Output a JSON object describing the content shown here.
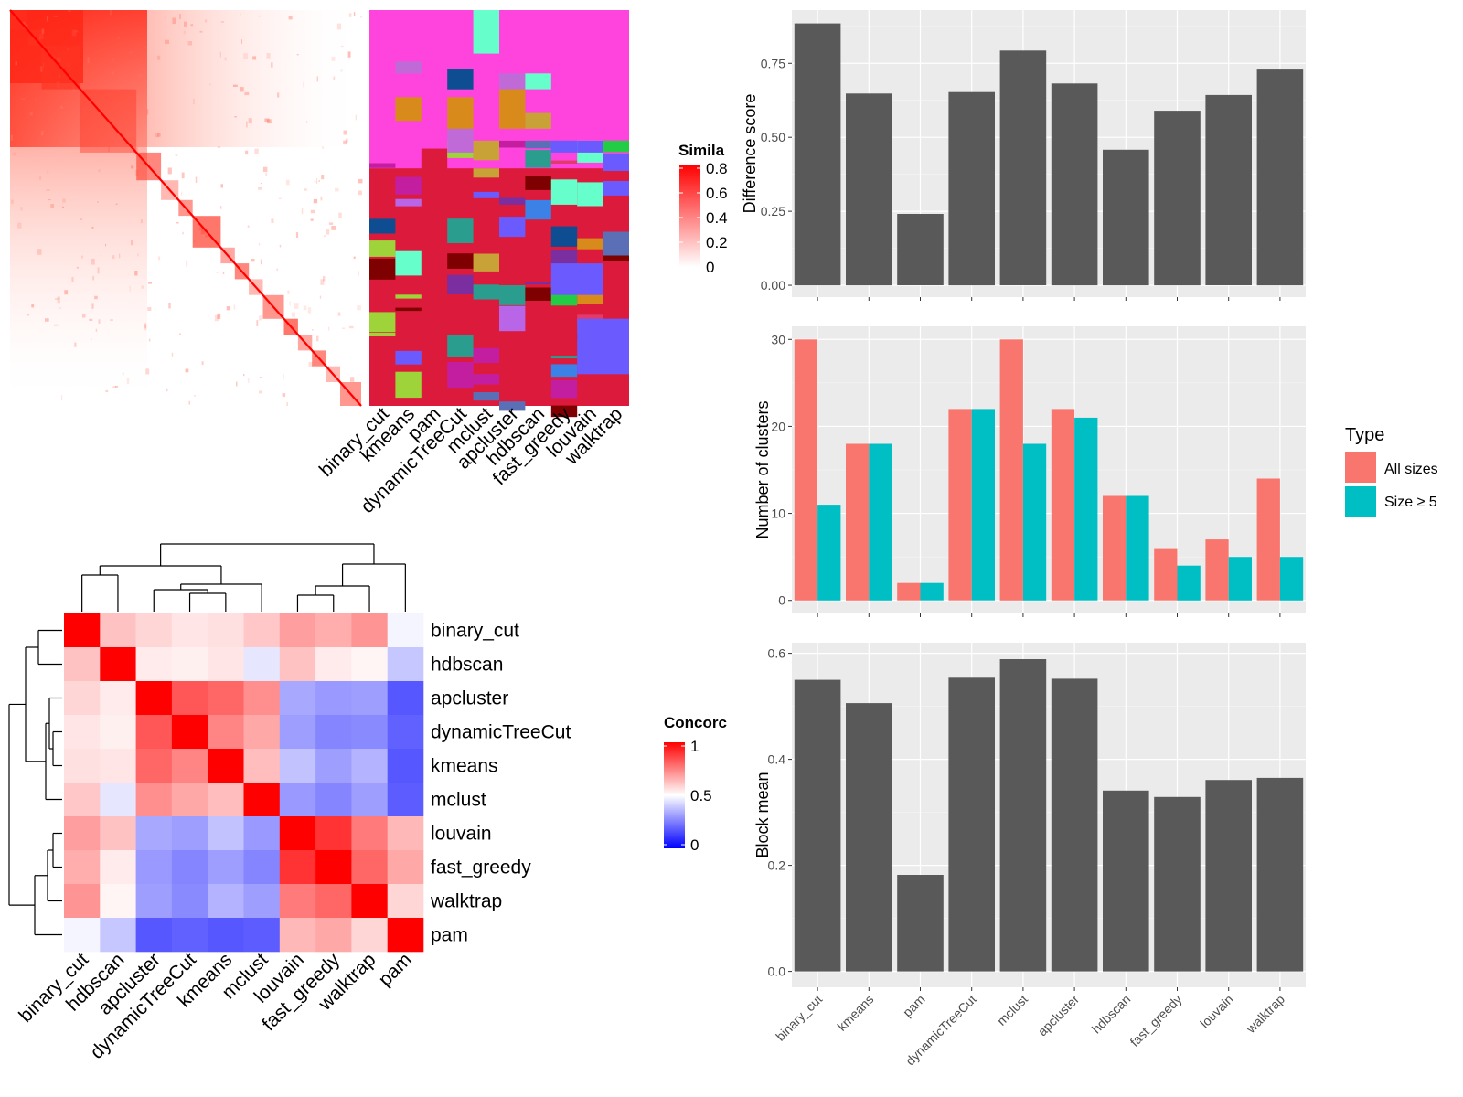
{
  "chart_data": [
    {
      "type": "heatmap",
      "id": "similarity-heatmap",
      "legend": {
        "title": "Similarity",
        "visible_title": "Simila",
        "ticks": [
          "0.8",
          "0.6",
          "0.4",
          "0.2",
          "0"
        ],
        "tick_values": [
          0.8,
          0.6,
          0.4,
          0.2,
          0
        ],
        "low_color": "#ffffff",
        "high_color": "#ff0000"
      }
    },
    {
      "type": "heatmap",
      "id": "cluster-assignment-heatmap",
      "columns": [
        "binary_cut",
        "kmeans",
        "pam",
        "dynamicTreeCut",
        "mclust",
        "apcluster",
        "hdbscan",
        "fast_greedy",
        "louvain",
        "walktrap"
      ]
    },
    {
      "type": "heatmap",
      "id": "concordance-heatmap",
      "labels": [
        "binary_cut",
        "hdbscan",
        "apcluster",
        "dynamicTreeCut",
        "kmeans",
        "mclust",
        "louvain",
        "fast_greedy",
        "walktrap",
        "pam"
      ],
      "values": [
        [
          1.0,
          0.62,
          0.58,
          0.55,
          0.56,
          0.61,
          0.69,
          0.66,
          0.71,
          0.48
        ],
        [
          0.62,
          1.0,
          0.54,
          0.53,
          0.55,
          0.45,
          0.62,
          0.54,
          0.52,
          0.39
        ],
        [
          0.58,
          0.54,
          1.0,
          0.83,
          0.8,
          0.72,
          0.33,
          0.3,
          0.31,
          0.17
        ],
        [
          0.55,
          0.53,
          0.83,
          1.0,
          0.74,
          0.67,
          0.31,
          0.26,
          0.27,
          0.19
        ],
        [
          0.56,
          0.55,
          0.8,
          0.74,
          1.0,
          0.63,
          0.38,
          0.31,
          0.35,
          0.17
        ],
        [
          0.61,
          0.45,
          0.72,
          0.67,
          0.63,
          1.0,
          0.3,
          0.26,
          0.31,
          0.18
        ],
        [
          0.69,
          0.62,
          0.33,
          0.31,
          0.38,
          0.3,
          1.0,
          0.9,
          0.76,
          0.64
        ],
        [
          0.66,
          0.54,
          0.3,
          0.26,
          0.31,
          0.26,
          0.9,
          1.0,
          0.8,
          0.67
        ],
        [
          0.71,
          0.52,
          0.31,
          0.27,
          0.35,
          0.31,
          0.76,
          0.8,
          1.0,
          0.58
        ],
        [
          0.48,
          0.39,
          0.17,
          0.19,
          0.17,
          0.18,
          0.64,
          0.67,
          0.58,
          1.0
        ]
      ],
      "legend": {
        "title": "Concordance",
        "visible_title": "Concorc",
        "ticks": [
          "1",
          "0.5",
          "0"
        ],
        "tick_values": [
          1,
          0.5,
          0
        ]
      }
    },
    {
      "type": "bar",
      "id": "difference-score",
      "categories": [
        "binary_cut",
        "kmeans",
        "pam",
        "dynamicTreeCut",
        "mclust",
        "apcluster",
        "hdbscan",
        "fast_greedy",
        "louvain",
        "walktrap"
      ],
      "values": [
        0.885,
        0.648,
        0.241,
        0.653,
        0.793,
        0.682,
        0.458,
        0.59,
        0.643,
        0.729
      ],
      "ylabel": "Difference score",
      "yticks": [
        "0.00",
        "0.25",
        "0.50",
        "0.75"
      ],
      "ytick_values": [
        0,
        0.25,
        0.5,
        0.75
      ],
      "ylim": [
        -0.04,
        0.93
      ],
      "bar_color": "#595959"
    },
    {
      "type": "bar",
      "id": "number-of-clusters",
      "categories": [
        "binary_cut",
        "kmeans",
        "pam",
        "dynamicTreeCut",
        "mclust",
        "apcluster",
        "hdbscan",
        "fast_greedy",
        "louvain",
        "walktrap"
      ],
      "series": [
        {
          "name": "All sizes",
          "values": [
            30,
            18,
            2,
            22,
            30,
            22,
            12,
            6,
            7,
            14
          ],
          "color": "#f8766d"
        },
        {
          "name": "Size ≥ 5",
          "values": [
            11,
            18,
            2,
            22,
            18,
            21,
            12,
            4,
            5,
            5
          ],
          "color": "#00bfc4"
        }
      ],
      "ylabel": "Number of clusters",
      "yticks": [
        "0",
        "10",
        "20",
        "30"
      ],
      "ytick_values": [
        0,
        10,
        20,
        30
      ],
      "ylim": [
        -1.5,
        31.5
      ],
      "legend": {
        "title": "Type",
        "position": "right"
      }
    },
    {
      "type": "bar",
      "id": "block-mean",
      "categories": [
        "binary_cut",
        "kmeans",
        "pam",
        "dynamicTreeCut",
        "mclust",
        "apcluster",
        "hdbscan",
        "fast_greedy",
        "louvain",
        "walktrap"
      ],
      "values": [
        0.55,
        0.506,
        0.182,
        0.554,
        0.589,
        0.552,
        0.341,
        0.329,
        0.361,
        0.365
      ],
      "ylabel": "Block mean",
      "yticks": [
        "0.0",
        "0.2",
        "0.4",
        "0.6"
      ],
      "ytick_values": [
        0,
        0.2,
        0.4,
        0.6
      ],
      "ylim": [
        -0.03,
        0.62
      ],
      "bar_color": "#595959"
    }
  ]
}
